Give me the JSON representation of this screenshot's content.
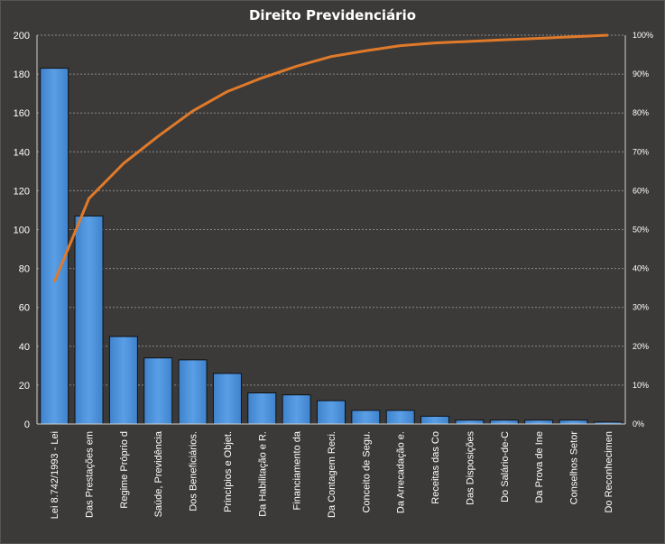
{
  "chart_data": {
    "type": "bar",
    "title": "Direito Previdenciário",
    "xlabel": "",
    "ylabel": "",
    "ylim": [
      0,
      200
    ],
    "y_ticks": [
      "0",
      "20",
      "40",
      "60",
      "80",
      "100",
      "120",
      "140",
      "160",
      "180",
      "200"
    ],
    "y2lim": [
      0,
      100
    ],
    "y2_ticks": [
      "0%",
      "10%",
      "20%",
      "30%",
      "40%",
      "50%",
      "60%",
      "70%",
      "80%",
      "90%",
      "100%"
    ],
    "grid": true,
    "categories": [
      "Lei 8.742/1993  - Lei",
      "Das Prestações em",
      "Regime Próprio d",
      "Saúde, Previdência",
      "Dos Beneficiários.",
      "Princípios e Objet.",
      "Da Habilitação e R.",
      "Financiamento da",
      "Da Contagem Reci.",
      "Conceito de Segu.",
      "Da Arrecadação e.",
      "Receitas das Co",
      "Das Disposições",
      "Do Salário-de-C",
      "Da Prova de Ine",
      "Conselhos Setor",
      "Do Reconhecimen"
    ],
    "series": [
      {
        "type": "bar",
        "values": [
          183,
          107,
          45,
          34,
          33,
          26,
          16,
          15,
          12,
          7,
          7,
          4,
          2,
          2,
          2,
          2,
          1
        ],
        "color": "#4a90d9"
      },
      {
        "type": "line",
        "axis": "right",
        "values": [
          36.5,
          58,
          67,
          74,
          80.5,
          85.5,
          89,
          92,
          94.5,
          96,
          97.3,
          98,
          98.4,
          98.8,
          99.2,
          99.6,
          100
        ],
        "color": "#e07a2a"
      }
    ]
  }
}
